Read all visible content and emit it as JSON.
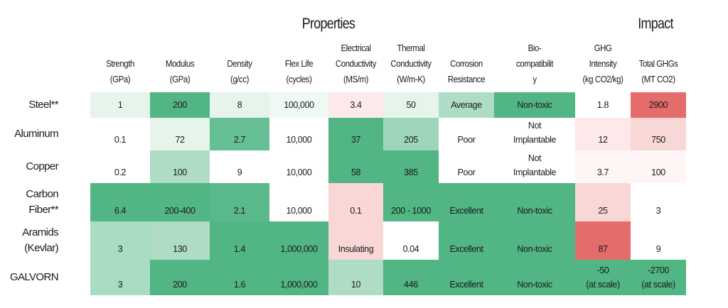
{
  "groups": {
    "properties": "Properties",
    "impact": "Impact"
  },
  "columns": [
    "Strength\n(GPa)",
    "Modulus\n(GPa)",
    "Density\n(g/cc)",
    "Flex Life\n(cycles)",
    "Electrical\nConductivity\n(MS/m)",
    "Thermal\nConductivity\n(W/m-K)",
    "Corrosion\nResistance",
    "Bio-\ncompatibilit\ny",
    "GHG\nIntensity\n(kg CO2/kg)",
    "Total GHGs\n(MT CO2)"
  ],
  "colors": {
    "dark_green": "#52b584",
    "mid_green": "#66bf94",
    "green2": "#59b98a",
    "light_green": "#aedcc5",
    "light_green2": "#a8dcc3",
    "green3": "#9fd6bb",
    "pale_green": "#e6f4ec",
    "pale_green2": "#eff8f3",
    "red": "#e46c6a",
    "pink": "#f8d7d6",
    "pale_pink": "#fde9e9",
    "faint_pink": "#fef6f5",
    "white": "#ffffff"
  },
  "rows": [
    {
      "material": "Steel**",
      "values": [
        "1",
        "200",
        "8",
        "100,000",
        "3.4",
        "50",
        "Average",
        "Non-toxic",
        "1.8",
        "2900"
      ],
      "fills": [
        "pale_green",
        "dark_green",
        "pale_green",
        "pale_green2",
        "pale_pink",
        "pale_green",
        "light_green",
        "dark_green",
        "white",
        "red"
      ]
    },
    {
      "material": "Aluminum",
      "values": [
        "0.1",
        "72",
        "2.7",
        "10,000",
        "37",
        "205",
        "Poor",
        "Not\nImplantable",
        "12",
        "750"
      ],
      "fills": [
        "white",
        "pale_green",
        "mid_green",
        "white",
        "dark_green",
        "green3",
        "white",
        "white",
        "pale_pink",
        "pink"
      ]
    },
    {
      "material": "Copper",
      "values": [
        "0.2",
        "100",
        "9",
        "10,000",
        "58",
        "385",
        "Poor",
        "Not\nImplantable",
        "3.7",
        "100"
      ],
      "fills": [
        "white",
        "light_green",
        "white",
        "white",
        "dark_green",
        "dark_green",
        "white",
        "white",
        "faint_pink",
        "faint_pink"
      ]
    },
    {
      "material": "Carbon\nFiber**",
      "values": [
        "6.4",
        "200-400",
        "2.1",
        "10,000",
        "0.1",
        "200 - 1000",
        "Excellent",
        "Non-toxic",
        "25",
        "3"
      ],
      "fills": [
        "dark_green",
        "dark_green",
        "green2",
        "white",
        "pink",
        "dark_green",
        "dark_green",
        "dark_green",
        "pink",
        "white"
      ]
    },
    {
      "material": "Aramids\n(Kevlar)",
      "values": [
        "3",
        "130",
        "1.4",
        "1,000,000",
        "Insulating",
        "0.04",
        "Excellent",
        "Non-toxic",
        "87",
        "9"
      ],
      "fills": [
        "light_green2",
        "light_green",
        "dark_green",
        "dark_green",
        "pink",
        "white",
        "dark_green",
        "dark_green",
        "red",
        "white"
      ]
    },
    {
      "material": "GALVORN",
      "values": [
        "3",
        "200",
        "1.6",
        "1,000,000",
        "10",
        "446",
        "Excellent",
        "Non-toxic",
        "-50\n(at scale)",
        "-2700\n(at scale)"
      ],
      "fills": [
        "light_green2",
        "dark_green",
        "dark_green",
        "dark_green",
        "light_green",
        "dark_green",
        "dark_green",
        "dark_green",
        "dark_green",
        "dark_green"
      ]
    }
  ]
}
